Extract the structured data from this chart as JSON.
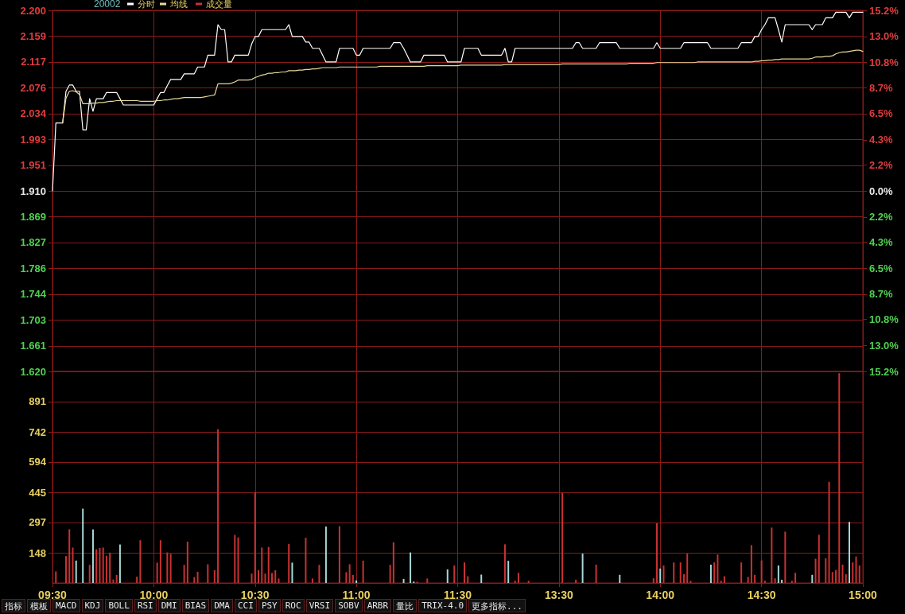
{
  "chart_data": [
    {
      "type": "line",
      "title": "20002",
      "legend": "top left",
      "grid": true,
      "line_style": "solid",
      "tick_labels": "y",
      "categories": [
        null,
        null,
        null,
        null,
        null,
        null,
        null,
        null,
        null,
        null,
        null,
        null,
        null,
        null,
        null,
        null,
        null,
        null,
        null,
        null,
        null,
        null,
        null,
        null,
        null,
        null,
        null,
        null,
        null,
        null,
        null,
        null,
        null,
        null,
        null,
        null,
        null,
        null,
        null,
        null,
        null,
        null,
        null,
        null,
        null,
        null,
        null,
        null,
        null,
        null,
        null,
        null,
        null,
        null,
        null,
        null,
        null,
        null,
        null,
        null,
        null,
        null,
        null,
        null,
        null,
        null,
        null,
        null,
        null,
        null,
        null,
        null,
        null,
        null,
        null,
        null,
        null,
        null,
        null,
        null,
        null,
        null,
        null,
        null,
        null,
        null,
        null,
        null,
        null,
        null,
        null,
        null,
        null,
        null,
        null,
        null,
        null,
        null,
        null,
        null,
        null,
        null,
        null,
        null,
        null,
        null,
        null,
        null,
        null,
        null,
        null,
        null,
        null,
        null,
        null,
        null,
        null,
        null,
        null,
        null,
        null,
        null,
        null,
        null,
        null,
        null,
        null,
        null,
        null,
        null,
        null,
        null,
        null,
        null,
        null,
        null,
        null,
        null,
        null,
        null,
        null,
        null,
        null,
        null,
        null,
        null,
        null,
        null,
        null,
        null,
        null,
        null,
        null,
        null,
        null,
        null,
        null,
        null,
        null,
        null,
        null,
        null,
        null,
        null,
        null,
        null,
        null,
        null,
        null,
        null,
        null,
        null,
        null,
        null,
        null,
        null,
        null,
        null,
        null,
        null,
        null,
        null,
        null,
        null,
        null,
        null,
        null,
        null,
        null,
        null,
        null,
        null,
        null,
        null,
        null,
        null,
        null,
        null,
        null,
        null,
        null,
        null,
        null,
        null,
        null,
        null,
        null,
        null,
        null,
        null,
        null,
        null,
        null,
        null,
        null,
        null,
        null,
        null,
        null,
        null,
        null,
        null,
        null,
        null,
        null,
        null,
        null,
        null,
        null,
        null,
        null,
        null,
        null,
        null,
        null,
        null,
        null,
        null,
        null,
        null,
        null
      ],
      "ylim": [
        1.62,
        2.2
      ],
      "yticks": [
        {
          "value": 1.62,
          "label": "1.620"
        },
        1.661,
        1.703,
        1.744,
        1.786,
        1.827,
        1.869,
        {
          "value": 1.91,
          "label": "1.910"
        },
        1.951,
        1.993,
        2.034,
        2.076,
        2.117,
        2.159,
        {
          "value": 2.2,
          "label": "2.200"
        }
      ],
      "y2lim": [
        -15.2,
        15.2
      ],
      "y2ticks": [
        {
          "value": -15.2,
          "label": "15.2%"
        },
        {
          "value": -13,
          "label": "13.0%"
        },
        {
          "value": -10.8,
          "label": "10.8%"
        },
        {
          "value": -8.7,
          "label": "8.7%"
        },
        {
          "value": -6.5,
          "label": "6.5%"
        },
        {
          "value": -4.3,
          "label": "4.3%"
        },
        {
          "value": -2.2,
          "label": "2.2%"
        },
        {
          "value": 0,
          "label": "0.0%"
        },
        {
          "value": 2.2,
          "label": "2.2%"
        },
        {
          "value": 4.3,
          "label": "4.3%"
        },
        {
          "value": 6.5,
          "label": "6.5%"
        },
        {
          "value": 8.7,
          "label": "8.7%"
        },
        {
          "value": 10.8,
          "label": "10.8%"
        },
        {
          "value": 13,
          "label": "13.0%"
        },
        {
          "value": 15.2,
          "label": "15.2%"
        }
      ],
      "series": [
        {
          "name": "分时",
          "color": "#ffffff",
          "values": [
            1.91,
            2.019,
            2.019,
            2.019,
            2.07,
            2.08,
            2.08,
            2.07,
            2.07,
            2.008,
            2.008,
            2.058,
            2.038,
            2.058,
            2.058,
            2.058,
            2.068,
            2.068,
            2.068,
            2.068,
            2.058,
            2.048,
            2.048,
            2.048,
            2.048,
            2.048,
            2.048,
            2.048,
            2.048,
            2.048,
            2.048,
            2.058,
            2.068,
            2.068,
            2.079,
            2.089,
            2.089,
            2.089,
            2.089,
            2.098,
            2.098,
            2.098,
            2.098,
            2.109,
            2.109,
            2.109,
            2.128,
            2.128,
            2.128,
            2.177,
            2.169,
            2.169,
            2.117,
            2.117,
            2.128,
            2.128,
            2.128,
            2.128,
            2.128,
            2.146,
            2.158,
            2.158,
            2.169,
            2.169,
            2.169,
            2.169,
            2.169,
            2.169,
            2.169,
            2.169,
            2.177,
            2.158,
            2.158,
            2.158,
            2.158,
            2.149,
            2.149,
            2.139,
            2.139,
            2.139,
            2.128,
            2.117,
            2.117,
            2.117,
            2.117,
            2.139,
            2.139,
            2.139,
            2.139,
            2.139,
            2.128,
            2.128,
            2.139,
            2.139,
            2.139,
            2.139,
            2.139,
            2.139,
            2.139,
            2.139,
            2.139,
            2.148,
            2.148,
            2.148,
            2.139,
            2.128,
            2.117,
            2.117,
            2.117,
            2.117,
            2.128,
            2.128,
            2.128,
            2.128,
            2.128,
            2.128,
            2.128,
            2.117,
            2.117,
            2.117,
            2.117,
            2.117,
            2.139,
            2.139,
            2.139,
            2.139,
            2.139,
            2.128,
            2.128,
            2.128,
            2.128,
            2.128,
            2.128,
            2.128,
            2.139,
            2.117,
            2.117,
            2.139,
            2.139,
            2.139,
            2.139,
            2.139,
            2.139,
            2.139,
            2.139,
            2.139,
            2.139,
            2.139,
            2.139,
            2.139,
            2.139,
            2.139,
            2.139,
            2.139,
            2.139,
            2.148,
            2.148,
            2.139,
            2.139,
            2.139,
            2.139,
            2.139,
            2.148,
            2.148,
            2.148,
            2.148,
            2.148,
            2.148,
            2.139,
            2.139,
            2.139,
            2.139,
            2.139,
            2.139,
            2.139,
            2.139,
            2.139,
            2.139,
            2.139,
            2.148,
            2.139,
            2.139,
            2.139,
            2.139,
            2.139,
            2.139,
            2.139,
            2.148,
            2.148,
            2.148,
            2.148,
            2.148,
            2.148,
            2.148,
            2.148,
            2.139,
            2.139,
            2.139,
            2.139,
            2.139,
            2.139,
            2.139,
            2.139,
            2.139,
            2.148,
            2.148,
            2.148,
            2.148,
            2.158,
            2.158,
            2.169,
            2.177,
            2.188,
            2.188,
            2.188,
            2.169,
            2.149,
            2.177,
            2.177,
            2.177,
            2.177,
            2.177,
            2.177,
            2.177,
            2.177,
            2.169,
            2.177,
            2.177,
            2.177,
            2.188,
            2.188,
            2.188,
            2.197,
            2.197,
            2.197,
            2.197,
            2.188,
            2.197,
            2.197,
            2.197,
            2.197
          ]
        },
        {
          "name": "均线",
          "color": "#e8d89a",
          "values": [
            null,
            null,
            null,
            2.019,
            2.059,
            2.07,
            2.071,
            2.069,
            2.065,
            2.05,
            2.05,
            2.05,
            2.051,
            2.051,
            2.052,
            2.052,
            2.053,
            2.054,
            2.054,
            2.055,
            2.055,
            2.055,
            2.055,
            2.055,
            2.055,
            2.055,
            2.054,
            2.054,
            2.054,
            2.054,
            2.054,
            2.055,
            2.055,
            2.056,
            2.056,
            2.057,
            2.058,
            2.058,
            2.059,
            2.06,
            2.06,
            2.06,
            2.06,
            2.06,
            2.06,
            2.061,
            2.062,
            2.063,
            2.064,
            2.082,
            2.082,
            2.082,
            2.082,
            2.083,
            2.085,
            2.088,
            2.088,
            2.088,
            2.088,
            2.089,
            2.092,
            2.094,
            2.096,
            2.097,
            2.099,
            2.099,
            2.1,
            2.1,
            2.101,
            2.101,
            2.103,
            2.103,
            2.103,
            2.104,
            2.104,
            2.105,
            2.105,
            2.106,
            2.106,
            2.107,
            2.108,
            2.108,
            2.108,
            2.108,
            2.108,
            2.109,
            2.109,
            2.109,
            2.109,
            2.109,
            2.109,
            2.109,
            2.109,
            2.109,
            2.109,
            2.109,
            2.109,
            2.11,
            2.11,
            2.11,
            2.11,
            2.11,
            2.11,
            2.11,
            2.11,
            2.11,
            2.11,
            2.11,
            2.11,
            2.11,
            2.11,
            2.111,
            2.111,
            2.111,
            2.111,
            2.111,
            2.111,
            2.111,
            2.111,
            2.111,
            2.111,
            2.112,
            2.112,
            2.112,
            2.112,
            2.112,
            2.112,
            2.112,
            2.112,
            2.112,
            2.112,
            2.112,
            2.112,
            2.112,
            2.113,
            2.113,
            2.113,
            2.113,
            2.113,
            2.113,
            2.113,
            2.113,
            2.113,
            2.113,
            2.113,
            2.113,
            2.113,
            2.113,
            2.113,
            2.113,
            2.113,
            2.114,
            2.114,
            2.114,
            2.114,
            2.114,
            2.114,
            2.114,
            2.114,
            2.114,
            2.114,
            2.114,
            2.114,
            2.114,
            2.114,
            2.114,
            2.114,
            2.114,
            2.114,
            2.114,
            2.114,
            2.115,
            2.115,
            2.115,
            2.115,
            2.115,
            2.115,
            2.115,
            2.115,
            2.116,
            2.116,
            2.116,
            2.116,
            2.116,
            2.116,
            2.116,
            2.116,
            2.116,
            2.116,
            2.116,
            2.116,
            2.117,
            2.117,
            2.117,
            2.117,
            2.117,
            2.117,
            2.117,
            2.117,
            2.117,
            2.117,
            2.117,
            2.117,
            2.117,
            2.117,
            2.117,
            2.117,
            2.117,
            2.118,
            2.118,
            2.119,
            2.119,
            2.12,
            2.12,
            2.121,
            2.121,
            2.122,
            2.122,
            2.122,
            2.122,
            2.122,
            2.122,
            2.122,
            2.122,
            2.122,
            2.123,
            2.125,
            2.125,
            2.125,
            2.126,
            2.126,
            2.127,
            2.13,
            2.132,
            2.133,
            2.133,
            2.134,
            2.135,
            2.136,
            2.136,
            2.134
          ]
        }
      ]
    },
    {
      "type": "bar",
      "legend": "top left",
      "grid": true,
      "categories": [
        "09:30",
        null,
        null,
        null,
        null,
        null,
        null,
        null,
        null,
        null,
        null,
        null,
        null,
        null,
        null,
        null,
        null,
        null,
        null,
        null,
        null,
        null,
        null,
        null,
        null,
        null,
        null,
        null,
        null,
        null,
        "10:00",
        null,
        null,
        null,
        null,
        null,
        null,
        null,
        null,
        null,
        null,
        null,
        null,
        null,
        null,
        null,
        null,
        null,
        null,
        null,
        null,
        null,
        null,
        null,
        null,
        null,
        null,
        null,
        null,
        null,
        "10:30",
        null,
        null,
        null,
        null,
        null,
        null,
        null,
        null,
        null,
        null,
        null,
        null,
        null,
        null,
        null,
        null,
        null,
        null,
        null,
        null,
        null,
        null,
        null,
        null,
        null,
        null,
        null,
        null,
        null,
        "11:00",
        null,
        null,
        null,
        null,
        null,
        null,
        null,
        null,
        null,
        null,
        null,
        null,
        null,
        null,
        null,
        null,
        null,
        null,
        null,
        null,
        null,
        null,
        null,
        null,
        null,
        null,
        null,
        null,
        null,
        "11:30",
        null,
        null,
        null,
        null,
        null,
        null,
        null,
        null,
        null,
        null,
        null,
        null,
        null,
        null,
        null,
        null,
        null,
        null,
        null,
        null,
        null,
        null,
        null,
        null,
        null,
        null,
        null,
        null,
        null,
        "13:30",
        null,
        null,
        null,
        null,
        null,
        null,
        null,
        null,
        null,
        null,
        null,
        null,
        null,
        null,
        null,
        null,
        null,
        null,
        null,
        null,
        null,
        null,
        null,
        null,
        null,
        null,
        null,
        null,
        null,
        "14:00",
        null,
        null,
        null,
        null,
        null,
        null,
        null,
        null,
        null,
        null,
        null,
        null,
        null,
        null,
        null,
        null,
        null,
        null,
        null,
        null,
        null,
        null,
        null,
        null,
        null,
        null,
        null,
        null,
        null,
        "14:30",
        null,
        null,
        null,
        null,
        null,
        null,
        null,
        null,
        null,
        null,
        null,
        null,
        null,
        null,
        null,
        null,
        null,
        null,
        null,
        null,
        null,
        null,
        null,
        null,
        null,
        null,
        null,
        null,
        null,
        "15:00"
      ],
      "ylim": [
        0,
        1039
      ],
      "yticks": [
        148,
        297,
        445,
        594,
        742,
        891
      ],
      "annotations": [
        "指标",
        "模板",
        "MACD",
        "KDJ",
        "BOLL",
        "RSI",
        "DMI",
        "BIAS",
        "DMA",
        "CCI",
        "PSY",
        "ROC",
        "VRSI",
        "SOBV",
        "ARBR",
        "量比",
        "TRIX-4.0",
        "更多指标..."
      ],
      "series": [
        {
          "name": "成交量",
          "values": [
            null,
            57,
            null,
            null,
            132,
            264,
            174,
            110,
            null,
            365,
            null,
            89,
            263,
            166,
            172,
            174,
            134,
            149,
            17,
            39,
            189,
            null,
            null,
            null,
            null,
            31,
            210,
            null,
            null,
            null,
            null,
            100,
            210,
            null,
            150,
            143,
            null,
            null,
            null,
            89,
            203,
            null,
            29,
            55,
            null,
            null,
            92,
            null,
            63,
            755,
            null,
            null,
            null,
            null,
            236,
            224,
            null,
            null,
            null,
            46,
            446,
            63,
            174,
            46,
            177,
            49,
            63,
            22,
            null,
            null,
            192,
            100,
            null,
            null,
            null,
            222,
            null,
            22,
            null,
            89,
            null,
            277,
            null,
            null,
            null,
            279,
            null,
            53,
            92,
            39,
            13,
            null,
            110,
            null,
            null,
            null,
            null,
            null,
            null,
            null,
            89,
            200,
            null,
            null,
            20,
            null,
            150,
            7,
            6,
            null,
            null,
            22,
            null,
            null,
            null,
            null,
            null,
            67,
            null,
            86,
            null,
            null,
            101,
            33,
            null,
            null,
            null,
            41,
            null,
            null,
            null,
            null,
            null,
            null,
            190,
            109,
            null,
            11,
            50,
            null,
            null,
            11,
            null,
            null,
            null,
            null,
            null,
            null,
            null,
            null,
            null,
            442,
            null,
            null,
            null,
            16,
            null,
            144,
            null,
            null,
            null,
            90,
            null,
            null,
            null,
            null,
            null,
            null,
            40,
            null,
            null,
            null,
            null,
            null,
            null,
            null,
            null,
            null,
            23,
            293,
            71,
            86,
            null,
            null,
            101,
            null,
            101,
            43,
            144,
            11,
            null,
            null,
            null,
            null,
            null,
            90,
            101,
            140,
            11,
            33,
            null,
            null,
            null,
            null,
            101,
            null,
            30,
            186,
            40,
            null,
            111,
            11,
            null,
            272,
            23,
            86,
            16,
            252,
            null,
            11,
            50,
            null,
            null,
            null,
            null,
            40,
            119,
            237,
            null,
            121,
            497,
            54,
            64,
            1030,
            90,
            43,
            300,
            101,
            130,
            86,
            null
          ],
          "colors": [
            null,
            "#c83232",
            null,
            null,
            "#c83232",
            "#c83232",
            "#c83232",
            "#a8d8d8",
            null,
            "#a8d8d8",
            null,
            "#c83232",
            "#a8d8d8",
            "#c83232",
            "#c83232",
            "#c83232",
            "#c83232",
            "#c83232",
            "#c83232",
            "#c83232",
            "#a8d8d8",
            null,
            null,
            null,
            null,
            "#c83232",
            "#c83232",
            null,
            null,
            null,
            null,
            "#c83232",
            "#c83232",
            null,
            "#c83232",
            "#c83232",
            null,
            null,
            null,
            "#c83232",
            "#c83232",
            null,
            "#c83232",
            "#c83232",
            null,
            null,
            "#c83232",
            null,
            "#c83232",
            "#c83232",
            null,
            null,
            null,
            null,
            "#c83232",
            "#c83232",
            null,
            null,
            null,
            "#c83232",
            "#c83232",
            "#c83232",
            "#c83232",
            "#c83232",
            "#c83232",
            "#c83232",
            "#c83232",
            "#c83232",
            null,
            null,
            "#c83232",
            "#a8d8d8",
            null,
            null,
            null,
            "#c83232",
            null,
            "#c83232",
            null,
            "#c83232",
            null,
            "#a8d8d8",
            null,
            null,
            null,
            "#c83232",
            null,
            "#c83232",
            "#c83232",
            "#c83232",
            "#a8d8d8",
            null,
            "#c83232",
            null,
            null,
            null,
            null,
            null,
            null,
            null,
            "#c83232",
            "#c83232",
            null,
            null,
            "#a8d8d8",
            null,
            "#a8d8d8",
            "#a8d8d8",
            "#c83232",
            null,
            null,
            "#c83232",
            null,
            null,
            null,
            null,
            null,
            "#a8d8d8",
            null,
            "#c83232",
            null,
            null,
            "#c83232",
            "#c83232",
            null,
            null,
            null,
            "#a8d8d8",
            null,
            null,
            null,
            null,
            null,
            null,
            "#c83232",
            "#a8d8d8",
            null,
            "#c83232",
            "#c83232",
            null,
            null,
            "#c83232",
            null,
            null,
            null,
            null,
            null,
            null,
            null,
            null,
            null,
            "#c83232",
            null,
            null,
            null,
            "#c83232",
            null,
            "#a8d8d8",
            null,
            null,
            null,
            "#c83232",
            null,
            null,
            null,
            null,
            null,
            null,
            "#a8d8d8",
            null,
            null,
            null,
            null,
            null,
            null,
            null,
            null,
            null,
            "#c83232",
            "#c83232",
            "#a8d8d8",
            "#c83232",
            null,
            null,
            "#c83232",
            null,
            "#c83232",
            "#c83232",
            "#c83232",
            "#c83232",
            null,
            null,
            null,
            null,
            null,
            "#a8d8d8",
            "#c83232",
            "#c83232",
            "#c83232",
            "#c83232",
            null,
            null,
            null,
            null,
            "#c83232",
            null,
            "#c83232",
            "#c83232",
            "#c83232",
            null,
            "#c83232",
            "#c83232",
            null,
            "#c83232",
            "#c83232",
            "#a8d8d8",
            "#a8d8d8",
            "#c83232",
            null,
            "#c83232",
            "#c83232",
            null,
            null,
            null,
            null,
            "#a8d8d8",
            "#c83232",
            "#c83232",
            null,
            "#c83232",
            "#c83232",
            "#c83232",
            "#c83232",
            "#c83232",
            "#c83232",
            "#c83232",
            "#a8d8d8",
            "#c83232",
            "#c83232",
            "#c83232",
            null
          ]
        }
      ]
    }
  ]
}
